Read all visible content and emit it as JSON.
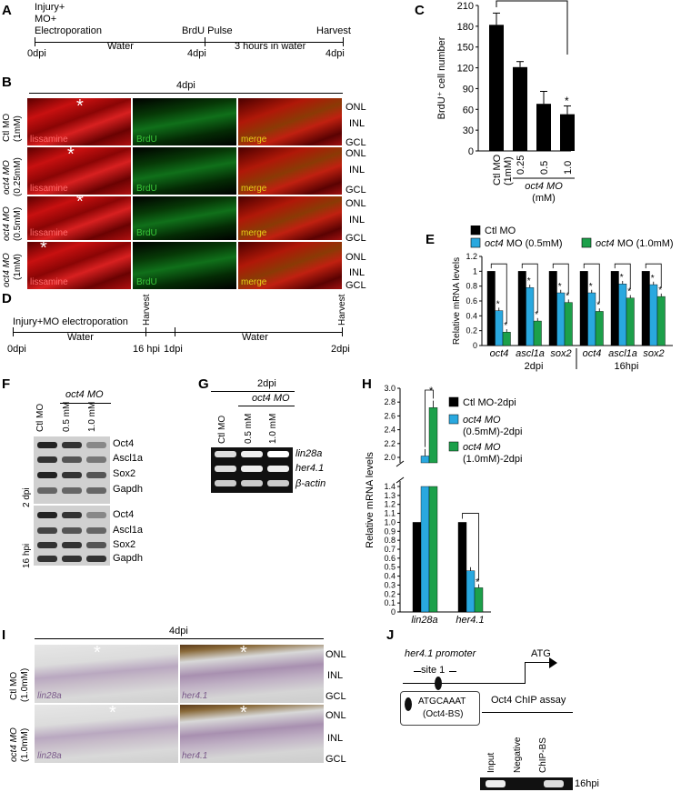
{
  "panels": {
    "A": "A",
    "B": "B",
    "C": "C",
    "D": "D",
    "E": "E",
    "F": "F",
    "G": "G",
    "H": "H",
    "I": "I",
    "J": "J"
  },
  "panelA": {
    "injury": "Injury+",
    "mo": "MO+",
    "electro": "Electroporation",
    "water": "Water",
    "brdu": "BrdU Pulse",
    "three_hours": "3 hours in water",
    "harvest": "Harvest",
    "t0": "0dpi",
    "t4a": "4dpi",
    "t4b": "4dpi"
  },
  "panelB": {
    "title": "4dpi",
    "rows": [
      {
        "label_a": "Ctl MO",
        "label_b": "(1mM)"
      },
      {
        "label_a": "oct4 MO",
        "label_b": "(0.25mM)"
      },
      {
        "label_a": "oct4 MO",
        "label_b": "(0.5mM)"
      },
      {
        "label_a": "oct4 MO",
        "label_b": "(1mM)"
      }
    ],
    "cols": [
      "lissamine",
      "BrdU",
      "merge"
    ],
    "layers": [
      "ONL",
      "INL",
      "GCL"
    ],
    "asterisk": "*"
  },
  "panelC": {
    "ylabel": "BrdU⁺ cell number",
    "yticks": [
      "0",
      "30",
      "60",
      "90",
      "120",
      "150",
      "180",
      "210"
    ],
    "xticks": [
      "Ctl MO (1mM)",
      "0.25",
      "0.5",
      "1.0"
    ],
    "xgroup": "oct4 MO",
    "xunit": "(mM)",
    "star": "*"
  },
  "chart_data": [
    {
      "type": "bar",
      "categories": [
        "Ctl MO (1mM)",
        "0.25",
        "0.5",
        "1.0"
      ],
      "values": [
        182,
        121,
        68,
        53
      ],
      "errors": [
        17,
        8,
        18,
        12
      ],
      "ylabel": "BrdU⁺ cell number",
      "ylim": [
        0,
        210
      ]
    },
    {
      "type": "bar",
      "categories": [
        "oct4",
        "ascl1a",
        "sox2",
        "oct4",
        "ascl1a",
        "sox2"
      ],
      "groups": [
        "2dpi",
        "16hpi"
      ],
      "series": [
        {
          "name": "Ctl MO",
          "values": [
            1,
            1,
            1,
            1,
            1,
            1
          ]
        },
        {
          "name": "oct4 MO (0.5mM)",
          "values": [
            0.47,
            0.78,
            0.71,
            0.71,
            0.83,
            0.82
          ]
        },
        {
          "name": "oct4 MO (1.0mM)",
          "values": [
            0.18,
            0.33,
            0.58,
            0.46,
            0.64,
            0.66
          ]
        }
      ],
      "ylabel": "Relative mRNA levels",
      "ylim": [
        0,
        1.2
      ]
    },
    {
      "type": "bar",
      "categories": [
        "lin28a",
        "her4.1"
      ],
      "series": [
        {
          "name": "Ctl MO-2dpi",
          "values": [
            1.0,
            1.0
          ]
        },
        {
          "name": "oct4 MO (0.5mM)-2dpi",
          "values": [
            2.02,
            0.46
          ]
        },
        {
          "name": "oct4 MO (1.0mM)-2dpi",
          "values": [
            2.72,
            0.27
          ]
        }
      ],
      "ylabel": "Relative mRNA levels",
      "ylim": [
        0,
        3.0
      ]
    }
  ],
  "panelD": {
    "injury": "Injury+MO electroporation",
    "water1": "Water",
    "water2": "Water",
    "t0": "0dpi",
    "t16": "16 hpi",
    "t1": "1dpi",
    "t2": "2dpi",
    "harvest1": "Harvest",
    "harvest2": "Harvest"
  },
  "panelE": {
    "legend": [
      "Ctl MO",
      "oct4 MO (0.5mM)",
      "oct4 MO (1.0mM)"
    ],
    "legend_it": "oct4",
    "ylabel": "Relative mRNA levels",
    "yticks": [
      "0",
      "0.2",
      "0.4",
      "0.6",
      "0.8",
      "1",
      "1.2"
    ],
    "genes": [
      "oct4",
      "ascl1a",
      "sox2",
      "oct4",
      "ascl1a",
      "sox2"
    ],
    "group1": "2dpi",
    "group2": "16hpi",
    "star": "*"
  },
  "panelF": {
    "header": "oct4 MO",
    "lanes": [
      "Ctl MO",
      "0.5 mM",
      "1.0 mM"
    ],
    "t1": "2 dpi",
    "t2": "16 hpi",
    "proteins1": [
      "Oct4",
      "Ascl1a",
      "Sox2",
      "Gapdh"
    ],
    "proteins2": [
      "Oct4",
      "Ascl1a",
      "Sox2",
      "Gapdh"
    ]
  },
  "panelG": {
    "header": "2dpi",
    "sub": "oct4 MO",
    "lanes": [
      "Ctl MO",
      "0.5 mM",
      "1.0 mM"
    ],
    "genes": [
      "lin28a",
      "her4.1",
      "β-actin"
    ]
  },
  "panelH": {
    "legend": [
      "Ctl MO-2dpi",
      "oct4 MO",
      "(0.5mM)-2dpi",
      "oct4 MO",
      "(1.0mM)-2dpi"
    ],
    "ylabel": "Relative mRNA levels",
    "yticks_top": [
      "2.0",
      "2.2",
      "2.4",
      "2.6",
      "2.8",
      "3.0"
    ],
    "yticks_bot": [
      "0",
      "0.1",
      "0.2",
      "0.3",
      "0.4",
      "0.5",
      "0.6",
      "0.7",
      "0.8",
      "0.9",
      "1.0",
      "1.1",
      "1.2",
      "1.3",
      "1.4"
    ],
    "genes": [
      "lin28a",
      "her4.1"
    ],
    "star": "*"
  },
  "panelI": {
    "title": "4dpi",
    "rows": [
      {
        "label_a": "Ctl MO",
        "label_b": "(1.0mM)"
      },
      {
        "label_a": "oct4 MO",
        "label_b": "(1.0mM)"
      }
    ],
    "cols": [
      "lin28a",
      "her4.1"
    ],
    "layers": [
      "ONL",
      "INL",
      "GCL"
    ],
    "asterisk": "*"
  },
  "panelJ": {
    "promoter": "her4.1 promoter",
    "site": "site 1",
    "atg": "ATG",
    "motif": "ATGCAAAT",
    "motif_sub": "(Oct4-BS)",
    "chip": "Oct4 ChIP assay",
    "lanes": [
      "Input",
      "Negative",
      "ChIP-BS"
    ],
    "time": "16hpi"
  }
}
